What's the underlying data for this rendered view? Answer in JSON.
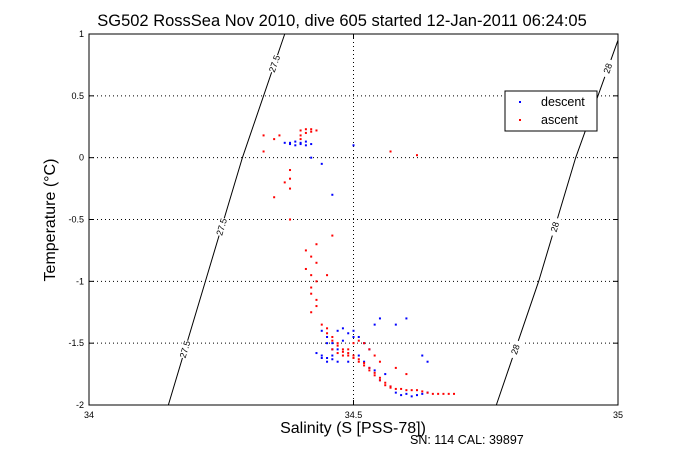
{
  "chart_data": {
    "type": "scatter",
    "title": "SG502 RossSea Nov 2010, dive 605 started 12-Jan-2011 06:24:05",
    "xlabel": "Salinity (S [PSS-78])",
    "ylabel": "Temperature (°C)",
    "xlim": [
      34,
      35
    ],
    "ylim": [
      -2,
      1
    ],
    "xticks": [
      "34",
      "34.5",
      "35"
    ],
    "yticks": [
      "-2",
      "-1.5",
      "-1",
      "-0.5",
      "0",
      "0.5",
      "1"
    ],
    "grid": true,
    "legend_position": "top-right",
    "footer": "SN: 114  CAL: 39897",
    "series": [
      {
        "name": "descent",
        "color": "#0000ff",
        "points": [
          [
            34.37,
            0.12
          ],
          [
            34.38,
            0.11
          ],
          [
            34.38,
            0.12
          ],
          [
            34.39,
            0.13
          ],
          [
            34.4,
            0.11
          ],
          [
            34.4,
            0.12
          ],
          [
            34.41,
            0.1
          ],
          [
            34.42,
            0.11
          ],
          [
            34.41,
            0.13
          ],
          [
            34.39,
            0.1
          ],
          [
            34.46,
            -0.3
          ],
          [
            34.44,
            -0.05
          ],
          [
            34.5,
            0.1
          ],
          [
            34.42,
            0.0
          ],
          [
            34.44,
            -1.4
          ],
          [
            34.45,
            -1.45
          ],
          [
            34.46,
            -1.5
          ],
          [
            34.47,
            -1.4
          ],
          [
            34.48,
            -1.38
          ],
          [
            34.49,
            -1.42
          ],
          [
            34.5,
            -1.4
          ],
          [
            34.51,
            -1.45
          ],
          [
            34.45,
            -1.5
          ],
          [
            34.46,
            -1.55
          ],
          [
            34.47,
            -1.55
          ],
          [
            34.48,
            -1.48
          ],
          [
            34.44,
            -1.6
          ],
          [
            34.45,
            -1.62
          ],
          [
            34.46,
            -1.6
          ],
          [
            34.47,
            -1.65
          ],
          [
            34.43,
            -1.58
          ],
          [
            34.44,
            -1.62
          ],
          [
            34.45,
            -1.65
          ],
          [
            34.46,
            -1.63
          ],
          [
            34.52,
            -1.5
          ],
          [
            34.53,
            -1.55
          ],
          [
            34.52,
            -1.65
          ],
          [
            34.51,
            -1.6
          ],
          [
            34.55,
            -1.3
          ],
          [
            34.54,
            -1.35
          ],
          [
            34.6,
            -1.3
          ],
          [
            34.58,
            -1.35
          ],
          [
            34.63,
            -1.6
          ],
          [
            34.64,
            -1.65
          ],
          [
            34.55,
            -1.8
          ],
          [
            34.56,
            -1.75
          ],
          [
            34.57,
            -1.85
          ],
          [
            34.58,
            -1.9
          ],
          [
            34.59,
            -1.92
          ],
          [
            34.6,
            -1.91
          ],
          [
            34.61,
            -1.93
          ],
          [
            34.62,
            -1.92
          ],
          [
            34.63,
            -1.91
          ],
          [
            34.64,
            -1.9
          ],
          [
            34.5,
            -1.45
          ],
          [
            34.53,
            -1.7
          ],
          [
            34.54,
            -1.72
          ],
          [
            34.49,
            -1.65
          ]
        ]
      },
      {
        "name": "ascent",
        "color": "#ff0000",
        "points": [
          [
            34.33,
            0.18
          ],
          [
            34.33,
            0.05
          ],
          [
            34.36,
            0.18
          ],
          [
            34.35,
            0.15
          ],
          [
            34.4,
            0.15
          ],
          [
            34.4,
            0.18
          ],
          [
            34.41,
            0.2
          ],
          [
            34.41,
            0.23
          ],
          [
            34.42,
            0.23
          ],
          [
            34.42,
            0.21
          ],
          [
            34.43,
            0.22
          ],
          [
            34.4,
            0.22
          ],
          [
            34.57,
            0.05
          ],
          [
            34.62,
            0.02
          ],
          [
            34.38,
            -0.1
          ],
          [
            34.38,
            -0.17
          ],
          [
            34.37,
            -0.2
          ],
          [
            34.38,
            -0.25
          ],
          [
            34.35,
            -0.32
          ],
          [
            34.38,
            -0.5
          ],
          [
            34.43,
            -0.7
          ],
          [
            34.41,
            -0.75
          ],
          [
            34.42,
            -0.8
          ],
          [
            34.43,
            -0.85
          ],
          [
            34.41,
            -0.9
          ],
          [
            34.42,
            -0.95
          ],
          [
            34.43,
            -1.0
          ],
          [
            34.42,
            -1.05
          ],
          [
            34.42,
            -1.1
          ],
          [
            34.43,
            -1.15
          ],
          [
            34.43,
            -1.2
          ],
          [
            34.42,
            -1.25
          ],
          [
            34.45,
            -0.95
          ],
          [
            34.46,
            -0.63
          ],
          [
            34.44,
            -1.35
          ],
          [
            34.45,
            -1.38
          ],
          [
            34.45,
            -1.42
          ],
          [
            34.46,
            -1.45
          ],
          [
            34.46,
            -1.48
          ],
          [
            34.47,
            -1.5
          ],
          [
            34.47,
            -1.52
          ],
          [
            34.48,
            -1.55
          ],
          [
            34.48,
            -1.57
          ],
          [
            34.49,
            -1.58
          ],
          [
            34.49,
            -1.6
          ],
          [
            34.5,
            -1.6
          ],
          [
            34.5,
            -1.62
          ],
          [
            34.51,
            -1.63
          ],
          [
            34.51,
            -1.65
          ],
          [
            34.52,
            -1.66
          ],
          [
            34.52,
            -1.68
          ],
          [
            34.53,
            -1.7
          ],
          [
            34.53,
            -1.72
          ],
          [
            34.54,
            -1.74
          ],
          [
            34.54,
            -1.76
          ],
          [
            34.55,
            -1.78
          ],
          [
            34.55,
            -1.8
          ],
          [
            34.56,
            -1.82
          ],
          [
            34.56,
            -1.84
          ],
          [
            34.57,
            -1.85
          ],
          [
            34.57,
            -1.86
          ],
          [
            34.58,
            -1.87
          ],
          [
            34.59,
            -1.87
          ],
          [
            34.6,
            -1.88
          ],
          [
            34.61,
            -1.88
          ],
          [
            34.62,
            -1.88
          ],
          [
            34.63,
            -1.89
          ],
          [
            34.64,
            -1.9
          ],
          [
            34.65,
            -1.91
          ],
          [
            34.66,
            -1.91
          ],
          [
            34.67,
            -1.91
          ],
          [
            34.68,
            -1.91
          ],
          [
            34.69,
            -1.91
          ],
          [
            34.46,
            -1.55
          ],
          [
            34.47,
            -1.58
          ],
          [
            34.48,
            -1.6
          ],
          [
            34.49,
            -1.55
          ],
          [
            34.5,
            -1.5
          ],
          [
            34.51,
            -1.48
          ],
          [
            34.52,
            -1.5
          ],
          [
            34.53,
            -1.55
          ],
          [
            34.54,
            -1.6
          ],
          [
            34.55,
            -1.65
          ],
          [
            34.58,
            -1.7
          ],
          [
            34.6,
            -1.75
          ]
        ]
      }
    ],
    "contours": [
      {
        "label": "27.5",
        "points": [
          [
            34.15,
            -2.0
          ],
          [
            34.22,
            -1.0
          ],
          [
            34.29,
            0.0
          ],
          [
            34.37,
            1.0
          ]
        ]
      },
      {
        "label": "28",
        "points": [
          [
            34.77,
            -2.0
          ],
          [
            34.85,
            -1.0
          ],
          [
            34.92,
            0.0
          ],
          [
            35.0,
            0.95
          ]
        ]
      }
    ]
  }
}
